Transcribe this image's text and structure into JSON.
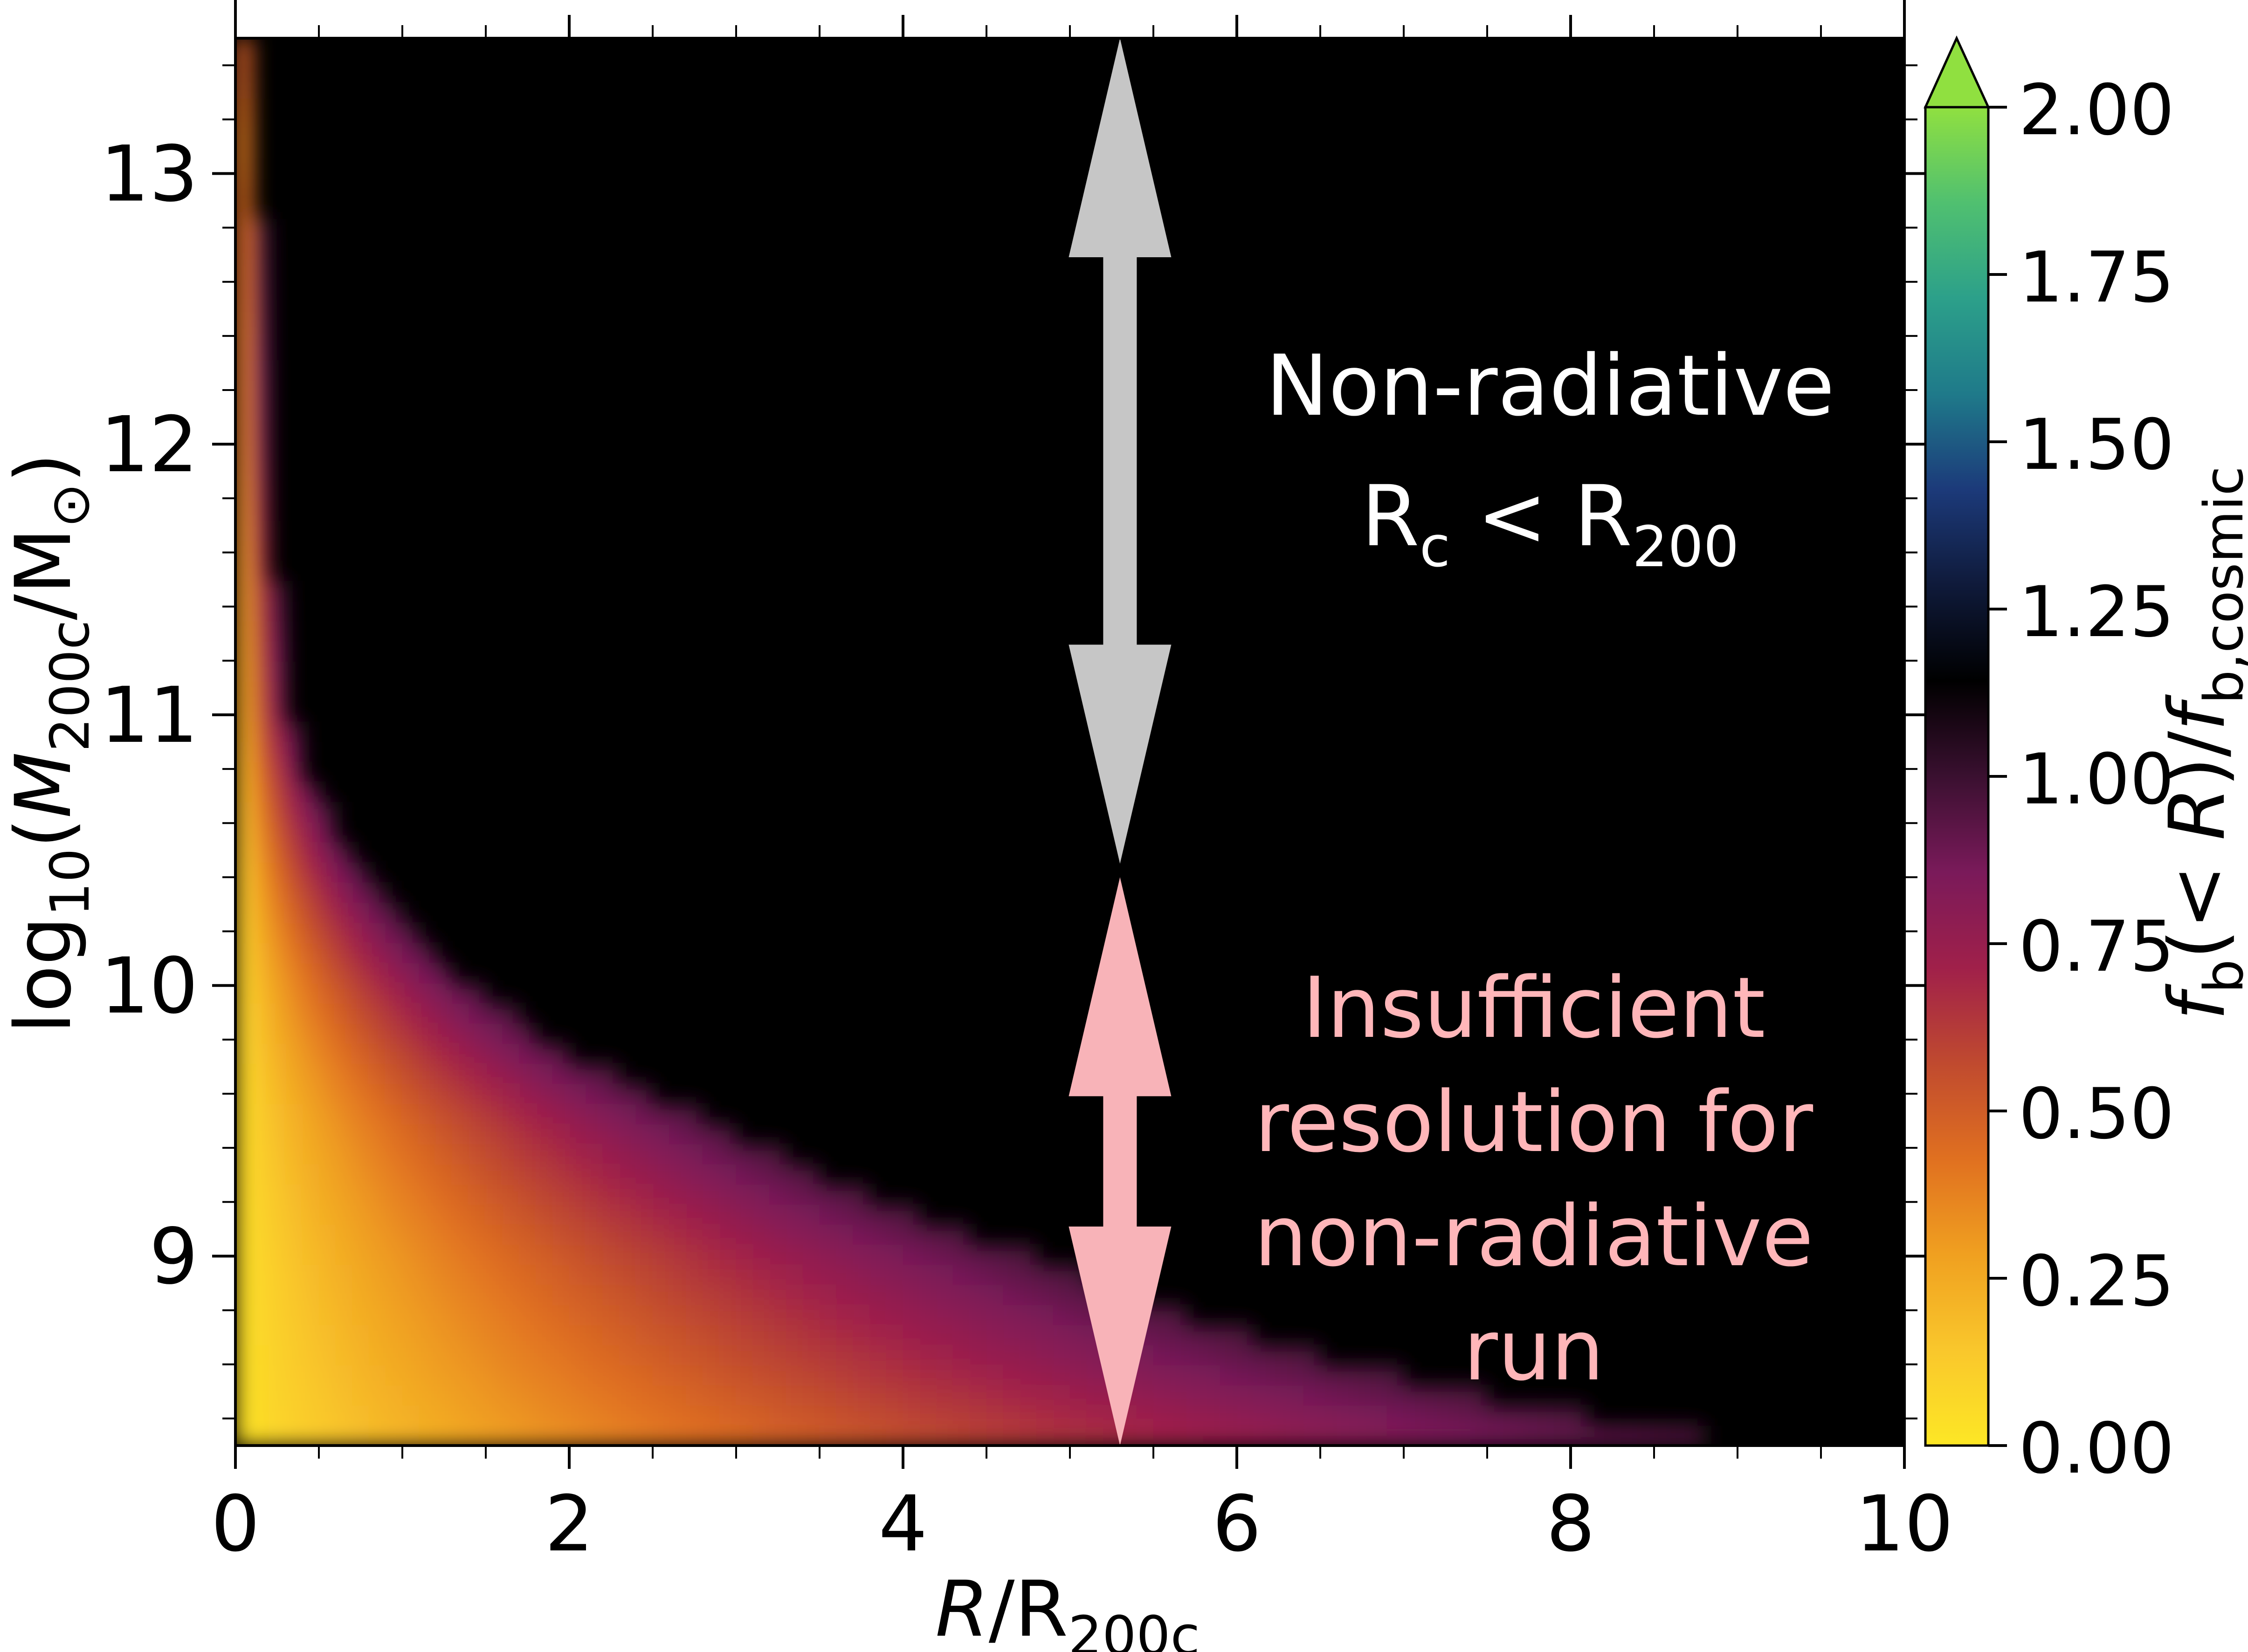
{
  "chart_data": {
    "type": "heatmap",
    "xlabel_parts": [
      "R",
      "/R",
      "200c"
    ],
    "ylabel_parts": [
      "log",
      "10",
      "(",
      "M",
      "200c",
      "/M",
      "⊙",
      ")"
    ],
    "colorbar_label_parts": [
      "f",
      "b",
      "(< ",
      "R",
      ")/",
      "f",
      "b,cosmic"
    ],
    "xlim": [
      0,
      10
    ],
    "ylim": [
      8.3,
      13.5
    ],
    "x_ticks": [
      0,
      2,
      4,
      6,
      8,
      10
    ],
    "y_ticks": [
      9,
      10,
      11,
      12,
      13
    ],
    "x_tick_labels": [
      "0",
      "2",
      "4",
      "6",
      "8",
      "10"
    ],
    "y_tick_labels": [
      "9",
      "10",
      "11",
      "12",
      "13"
    ],
    "colorbar": {
      "range": [
        0,
        2.0
      ],
      "extend": "max",
      "ticks": [
        0.0,
        0.25,
        0.5,
        0.75,
        1.0,
        1.25,
        1.5,
        1.75,
        2.0
      ],
      "tick_labels": [
        "0.00",
        "0.25",
        "0.50",
        "0.75",
        "1.00",
        "1.25",
        "1.50",
        "1.75",
        "2.00"
      ],
      "colors": [
        "#fde725",
        "#f9c72c",
        "#f0a020",
        "#e07020",
        "#c04a2f",
        "#a0204a",
        "#7a1a5a",
        "#3a1030",
        "#000000",
        "#0f1a3a",
        "#1c3a7a",
        "#1f7a8a",
        "#2ca08a",
        "#50c070",
        "#90e040"
      ]
    },
    "field_description": {
      "x": "R/R200c",
      "y": "log10(M200c/Msun)",
      "value": "fb(<R)/fb,cosmic",
      "threshold_R_of_logM": [
        {
          "logM": 8.3,
          "R": 9.5
        },
        {
          "logM": 8.6,
          "R": 7.0
        },
        {
          "logM": 9.0,
          "R": 5.0
        },
        {
          "logM": 9.5,
          "R": 3.0
        },
        {
          "logM": 10.0,
          "R": 1.5
        },
        {
          "logM": 10.5,
          "R": 0.7
        },
        {
          "logM": 11.0,
          "R": 0.35
        },
        {
          "logM": 12.0,
          "R": 0.2
        },
        {
          "logM": 13.0,
          "R": 0.15
        },
        {
          "logM": 13.5,
          "R": 0.12
        }
      ]
    },
    "annotations": [
      {
        "lines": [
          "Non-radiative"
        ],
        "sub_line": {
          "base1": "R",
          "sub1": "c",
          "mid": " < R",
          "sub2": "200"
        },
        "color": "#ffffff",
        "arrow_color": "#c6c6c6",
        "arrow_x": 5.3,
        "arrow_y_range": [
          10.45,
          13.5
        ]
      },
      {
        "lines": [
          "Insufficient",
          "resolution for",
          "non-radiative",
          "run"
        ],
        "color": "#ffb6b9",
        "arrow_color": "#f8b3b8",
        "arrow_x": 5.3,
        "arrow_y_range": [
          8.3,
          10.4
        ]
      }
    ]
  }
}
